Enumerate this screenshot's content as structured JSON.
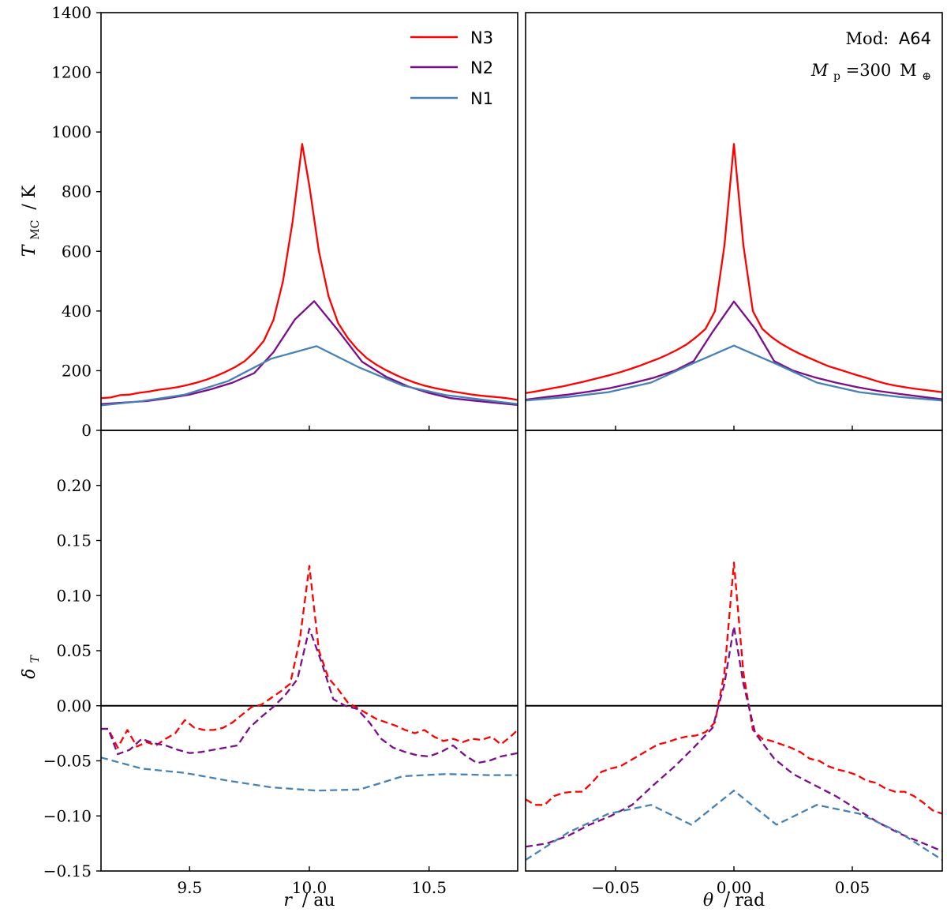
{
  "chart_data": {
    "type": "line",
    "series_styles": {
      "N3": {
        "color": "#ff0000"
      },
      "N2": {
        "color": "#7b0e8a"
      },
      "N1": {
        "color": "#4682b4"
      }
    },
    "legend": {
      "position": "top-right of upper-left panel",
      "entries": [
        "N3",
        "N2",
        "N1"
      ]
    },
    "annotation": {
      "mod_label": "Mod:",
      "mod_value": "A64",
      "mass_symbol": "M",
      "mass_sub": "p",
      "mass_eq": "=300",
      "mass_unit": "M",
      "mass_unit_sub": "⊕"
    },
    "x_axes": {
      "left": {
        "label_var": "r",
        "label_unit": "/ au",
        "xlim": [
          9.13,
          10.87
        ],
        "ticks": [
          9.5,
          10.0,
          10.5
        ],
        "tick_labels": [
          "9.5",
          "10.0",
          "10.5"
        ]
      },
      "right": {
        "label_var": "θ",
        "label_unit": "/ rad",
        "xlim": [
          -0.088,
          0.088
        ],
        "ticks": [
          -0.05,
          0.0,
          0.05
        ],
        "tick_labels": [
          "−0.05",
          "0.00",
          "0.05"
        ]
      }
    },
    "y_axes": {
      "top": {
        "label_var": "T",
        "label_sub": "MC",
        "label_unit": "/ K",
        "ylim": [
          0,
          1400
        ],
        "ticks": [
          0,
          200,
          400,
          600,
          800,
          1000,
          1200,
          1400
        ],
        "tick_labels": [
          "0",
          "200",
          "400",
          "600",
          "800",
          "1000",
          "1200",
          "1400"
        ]
      },
      "bottom": {
        "label_var": "δ",
        "label_sub": "T",
        "ylim": [
          -0.15,
          0.25
        ],
        "ticks": [
          -0.15,
          -0.1,
          -0.05,
          0.0,
          0.05,
          0.1,
          0.15,
          0.2
        ],
        "tick_labels": [
          "−0.15",
          "−0.10",
          "−0.05",
          "0.00",
          "0.05",
          "0.10",
          "0.15",
          "0.20"
        ]
      }
    },
    "panels": [
      {
        "id": "top-left",
        "series": [
          {
            "name": "N3",
            "style": "solid",
            "x": [
              9.13,
              9.17,
              9.21,
              9.25,
              9.29,
              9.33,
              9.37,
              9.41,
              9.45,
              9.49,
              9.53,
              9.57,
              9.61,
              9.65,
              9.69,
              9.73,
              9.77,
              9.81,
              9.85,
              9.89,
              9.93,
              9.97,
              10.0,
              10.04,
              10.08,
              10.12,
              10.16,
              10.2,
              10.24,
              10.28,
              10.32,
              10.36,
              10.4,
              10.44,
              10.48,
              10.52,
              10.56,
              10.6,
              10.64,
              10.68,
              10.72,
              10.76,
              10.8,
              10.84,
              10.87
            ],
            "y": [
              108,
              110,
              118,
              120,
              126,
              130,
              136,
              140,
              145,
              152,
              160,
              170,
              182,
              196,
              212,
              232,
              262,
              300,
              370,
              500,
              700,
              960,
              820,
              600,
              450,
              360,
              310,
              272,
              242,
              220,
              202,
              186,
              172,
              160,
              150,
              142,
              136,
              130,
              125,
              120,
              116,
              113,
              110,
              106,
              102
            ]
          },
          {
            "name": "N2",
            "style": "solid",
            "x": [
              9.13,
              9.22,
              9.32,
              9.41,
              9.5,
              9.59,
              9.68,
              9.77,
              9.85,
              9.94,
              10.02,
              10.12,
              10.22,
              10.32,
              10.41,
              10.5,
              10.59,
              10.68,
              10.78,
              10.87
            ],
            "y": [
              88,
              93,
              98,
              108,
              120,
              138,
              160,
              192,
              262,
              372,
              433,
              335,
              230,
              180,
              148,
              125,
              108,
              100,
              92,
              85
            ]
          },
          {
            "name": "N1",
            "style": "solid",
            "x": [
              9.13,
              9.3,
              9.48,
              9.66,
              9.84,
              10.03,
              10.21,
              10.39,
              10.57,
              10.75,
              10.87
            ],
            "y": [
              84,
              98,
              120,
              165,
              240,
              282,
              210,
              150,
              118,
              100,
              88
            ]
          }
        ]
      },
      {
        "id": "top-right",
        "series": [
          {
            "name": "N3",
            "style": "solid",
            "x": [
              -0.088,
              -0.084,
              -0.08,
              -0.076,
              -0.072,
              -0.068,
              -0.064,
              -0.06,
              -0.056,
              -0.052,
              -0.048,
              -0.044,
              -0.04,
              -0.036,
              -0.032,
              -0.028,
              -0.024,
              -0.02,
              -0.016,
              -0.012,
              -0.008,
              -0.004,
              0.0,
              0.004,
              0.008,
              0.012,
              0.016,
              0.02,
              0.024,
              0.028,
              0.032,
              0.036,
              0.04,
              0.044,
              0.048,
              0.052,
              0.056,
              0.06,
              0.064,
              0.068,
              0.072,
              0.076,
              0.08,
              0.084,
              0.088
            ],
            "y": [
              125,
              130,
              136,
              142,
              148,
              155,
              162,
              170,
              178,
              186,
              195,
              205,
              216,
              228,
              240,
              254,
              270,
              288,
              312,
              340,
              400,
              620,
              960,
              620,
              400,
              340,
              312,
              290,
              272,
              256,
              242,
              228,
              215,
              205,
              195,
              185,
              176,
              166,
              157,
              150,
              145,
              140,
              136,
              132,
              128
            ]
          },
          {
            "name": "N2",
            "style": "solid",
            "x": [
              -0.088,
              -0.079,
              -0.07,
              -0.061,
              -0.052,
              -0.043,
              -0.034,
              -0.025,
              -0.017,
              -0.009,
              0.0,
              0.009,
              0.017,
              0.025,
              0.034,
              0.043,
              0.052,
              0.061,
              0.07,
              0.079,
              0.088
            ],
            "y": [
              103,
              112,
              120,
              130,
              142,
              158,
              176,
              200,
              232,
              330,
              432,
              340,
              232,
              200,
              178,
              160,
              145,
              132,
              122,
              113,
              104
            ]
          },
          {
            "name": "N1",
            "style": "solid",
            "x": [
              -0.088,
              -0.07,
              -0.053,
              -0.035,
              -0.018,
              0.0,
              0.018,
              0.035,
              0.053,
              0.07,
              0.088
            ],
            "y": [
              100,
              112,
              128,
              160,
              222,
              284,
              222,
              160,
              128,
              112,
              100
            ]
          }
        ]
      },
      {
        "id": "bottom-left",
        "series": [
          {
            "name": "N3",
            "style": "dashed",
            "x": [
              9.13,
              9.16,
              9.2,
              9.24,
              9.28,
              9.32,
              9.36,
              9.4,
              9.44,
              9.48,
              9.52,
              9.56,
              9.6,
              9.64,
              9.68,
              9.72,
              9.76,
              9.8,
              9.84,
              9.88,
              9.92,
              9.96,
              10.0,
              10.04,
              10.08,
              10.12,
              10.16,
              10.2,
              10.24,
              10.28,
              10.32,
              10.36,
              10.4,
              10.44,
              10.48,
              10.52,
              10.56,
              10.6,
              10.64,
              10.68,
              10.72,
              10.76,
              10.8,
              10.84,
              10.87
            ],
            "y": [
              -0.021,
              -0.021,
              -0.038,
              -0.022,
              -0.037,
              -0.033,
              -0.036,
              -0.03,
              -0.025,
              -0.013,
              -0.02,
              -0.022,
              -0.022,
              -0.02,
              -0.015,
              -0.008,
              -0.001,
              0.001,
              0.007,
              0.013,
              0.02,
              0.06,
              0.127,
              0.05,
              0.025,
              0.015,
              0.003,
              -0.002,
              -0.007,
              -0.012,
              -0.015,
              -0.018,
              -0.022,
              -0.025,
              -0.022,
              -0.028,
              -0.032,
              -0.03,
              -0.033,
              -0.03,
              -0.031,
              -0.028,
              -0.035,
              -0.028,
              -0.022
            ]
          },
          {
            "name": "N2",
            "style": "dashed",
            "x": [
              9.13,
              9.16,
              9.2,
              9.25,
              9.3,
              9.35,
              9.4,
              9.45,
              9.5,
              9.55,
              9.6,
              9.65,
              9.7,
              9.75,
              9.8,
              9.85,
              9.9,
              9.95,
              10.0,
              10.05,
              10.1,
              10.15,
              10.2,
              10.25,
              10.3,
              10.35,
              10.4,
              10.45,
              10.5,
              10.55,
              10.6,
              10.65,
              10.7,
              10.75,
              10.8,
              10.87
            ],
            "y": [
              -0.021,
              -0.021,
              -0.044,
              -0.04,
              -0.03,
              -0.034,
              -0.036,
              -0.04,
              -0.043,
              -0.042,
              -0.04,
              -0.038,
              -0.036,
              -0.02,
              -0.01,
              -0.001,
              0.01,
              0.024,
              0.07,
              0.04,
              0.006,
              0.0,
              -0.003,
              -0.015,
              -0.03,
              -0.038,
              -0.042,
              -0.045,
              -0.046,
              -0.042,
              -0.036,
              -0.045,
              -0.052,
              -0.05,
              -0.046,
              -0.043
            ]
          },
          {
            "name": "N1",
            "style": "dashed",
            "x": [
              9.13,
              9.3,
              9.48,
              9.66,
              9.84,
              10.03,
              10.21,
              10.39,
              10.57,
              10.75,
              10.87
            ],
            "y": [
              -0.047,
              -0.057,
              -0.061,
              -0.068,
              -0.074,
              -0.077,
              -0.076,
              -0.064,
              -0.062,
              -0.063,
              -0.063
            ]
          }
        ]
      },
      {
        "id": "bottom-right",
        "series": [
          {
            "name": "N3",
            "style": "dashed",
            "x": [
              -0.088,
              -0.084,
              -0.08,
              -0.076,
              -0.072,
              -0.068,
              -0.064,
              -0.06,
              -0.056,
              -0.052,
              -0.048,
              -0.044,
              -0.04,
              -0.036,
              -0.032,
              -0.028,
              -0.024,
              -0.02,
              -0.016,
              -0.012,
              -0.008,
              -0.004,
              0.0,
              0.004,
              0.008,
              0.012,
              0.016,
              0.02,
              0.024,
              0.028,
              0.032,
              0.036,
              0.04,
              0.044,
              0.048,
              0.052,
              0.056,
              0.06,
              0.064,
              0.068,
              0.072,
              0.076,
              0.08,
              0.084,
              0.088
            ],
            "y": [
              -0.085,
              -0.09,
              -0.09,
              -0.082,
              -0.079,
              -0.078,
              -0.078,
              -0.07,
              -0.06,
              -0.057,
              -0.055,
              -0.05,
              -0.045,
              -0.04,
              -0.035,
              -0.033,
              -0.03,
              -0.028,
              -0.027,
              -0.024,
              -0.015,
              0.03,
              0.13,
              0.03,
              -0.022,
              -0.03,
              -0.032,
              -0.035,
              -0.038,
              -0.042,
              -0.048,
              -0.05,
              -0.055,
              -0.058,
              -0.06,
              -0.063,
              -0.068,
              -0.07,
              -0.075,
              -0.078,
              -0.078,
              -0.082,
              -0.088,
              -0.095,
              -0.098
            ]
          },
          {
            "name": "N2",
            "style": "dashed",
            "x": [
              -0.088,
              -0.079,
              -0.07,
              -0.061,
              -0.052,
              -0.043,
              -0.034,
              -0.025,
              -0.017,
              -0.009,
              -0.004,
              0.0,
              0.004,
              0.009,
              0.017,
              0.025,
              0.034,
              0.043,
              0.052,
              0.061,
              0.07,
              0.079,
              0.088
            ],
            "y": [
              -0.128,
              -0.125,
              -0.118,
              -0.108,
              -0.1,
              -0.09,
              -0.072,
              -0.055,
              -0.038,
              -0.02,
              0.02,
              0.072,
              0.02,
              -0.025,
              -0.048,
              -0.062,
              -0.072,
              -0.082,
              -0.094,
              -0.106,
              -0.116,
              -0.124,
              -0.132
            ]
          },
          {
            "name": "N1",
            "style": "dashed",
            "x": [
              -0.088,
              -0.07,
              -0.053,
              -0.035,
              -0.018,
              0.0,
              0.018,
              0.035,
              0.053,
              0.07,
              0.088
            ],
            "y": [
              -0.14,
              -0.115,
              -0.098,
              -0.09,
              -0.108,
              -0.077,
              -0.108,
              -0.09,
              -0.098,
              -0.115,
              -0.14
            ]
          }
        ]
      }
    ]
  }
}
